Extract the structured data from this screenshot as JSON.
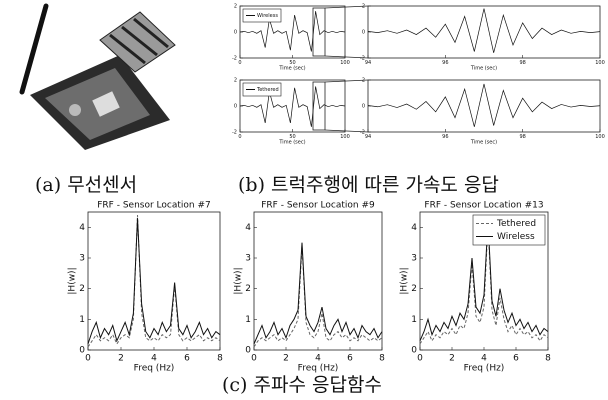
{
  "captions": {
    "a": "(a) 무선센서",
    "b": "(b) 트럭주행에 따른 가속도 응답",
    "c": "(c) 주파수 응답함수"
  },
  "chart_data": [
    {
      "type": "line",
      "xlabel": "Time (sec)",
      "xlim": [
        0,
        100
      ],
      "ylim": [
        -2,
        2
      ],
      "xticks": [
        0,
        50,
        100
      ],
      "yticks": [
        -2,
        0,
        2
      ],
      "legend": "upper left",
      "x": [
        0,
        4,
        8,
        12,
        16,
        20,
        24,
        28,
        32,
        36,
        40,
        44,
        48,
        52,
        56,
        60,
        64,
        68,
        72,
        76,
        80,
        84,
        88,
        92,
        96,
        100
      ],
      "series": [
        {
          "name": "Wireless",
          "color": "#111111",
          "values": [
            0,
            0.05,
            -0.05,
            0.05,
            -0.1,
            0.1,
            -1.2,
            1.0,
            -0.1,
            0.1,
            -0.1,
            0.05,
            -1.4,
            1.3,
            -0.1,
            0.1,
            -0.05,
            -1.5,
            1.6,
            -0.2,
            0.1,
            -0.05,
            0.05,
            -0.05,
            0.05,
            0
          ]
        }
      ]
    },
    {
      "type": "line",
      "xlabel": "Time (sec)",
      "xlim": [
        94,
        100
      ],
      "ylim": [
        -2,
        2
      ],
      "xticks": [
        94,
        96,
        98,
        100
      ],
      "yticks": [
        -2,
        0,
        2
      ],
      "x": [
        94,
        94.25,
        94.5,
        94.75,
        95,
        95.25,
        95.5,
        95.75,
        96,
        96.25,
        96.5,
        96.75,
        97,
        97.25,
        97.5,
        97.75,
        98,
        98.25,
        98.5,
        98.75,
        99,
        99.25,
        99.5,
        99.75,
        100
      ],
      "series": [
        {
          "name": null,
          "color": "#111111",
          "values": [
            0.05,
            -0.05,
            0.1,
            -0.1,
            0.15,
            -0.2,
            0.3,
            -0.4,
            0.6,
            -0.8,
            1.2,
            -1.5,
            1.8,
            -1.6,
            1.3,
            -1.0,
            0.7,
            -0.5,
            0.3,
            -0.2,
            0.15,
            -0.1,
            0.05,
            -0.05,
            0.03
          ]
        }
      ]
    },
    {
      "type": "line",
      "xlabel": "Time (sec)",
      "xlim": [
        0,
        100
      ],
      "ylim": [
        -2,
        2
      ],
      "xticks": [
        0,
        50,
        100
      ],
      "yticks": [
        -2,
        0,
        2
      ],
      "legend": "upper left",
      "x": [
        0,
        4,
        8,
        12,
        16,
        20,
        24,
        28,
        32,
        36,
        40,
        44,
        48,
        52,
        56,
        60,
        64,
        68,
        72,
        76,
        80,
        84,
        88,
        92,
        96,
        100
      ],
      "series": [
        {
          "name": "Tethered",
          "color": "#111111",
          "values": [
            0,
            0.05,
            -0.05,
            0.05,
            -0.1,
            0.1,
            -1.3,
            1.1,
            -0.1,
            0.1,
            -0.1,
            0.05,
            -1.3,
            1.4,
            -0.1,
            0.1,
            -0.05,
            -1.6,
            1.5,
            -0.2,
            0.1,
            -0.05,
            0.05,
            -0.05,
            0.05,
            0
          ]
        }
      ]
    },
    {
      "type": "line",
      "xlabel": "Time (sec)",
      "xlim": [
        94,
        100
      ],
      "ylim": [
        -2,
        2
      ],
      "xticks": [
        94,
        96,
        98,
        100
      ],
      "yticks": [
        -2,
        0,
        2
      ],
      "x": [
        94,
        94.25,
        94.5,
        94.75,
        95,
        95.25,
        95.5,
        95.75,
        96,
        96.25,
        96.5,
        96.75,
        97,
        97.25,
        97.5,
        97.75,
        98,
        98.25,
        98.5,
        98.75,
        99,
        99.25,
        99.5,
        99.75,
        100
      ],
      "series": [
        {
          "name": null,
          "color": "#111111",
          "values": [
            0.04,
            -0.06,
            0.1,
            -0.12,
            0.15,
            -0.25,
            0.35,
            -0.45,
            0.7,
            -0.9,
            1.3,
            -1.6,
            1.7,
            -1.5,
            1.2,
            -0.9,
            0.6,
            -0.45,
            0.3,
            -0.2,
            0.12,
            -0.08,
            0.05,
            -0.04,
            0.02
          ]
        }
      ]
    },
    {
      "type": "line",
      "title": "FRF - Sensor Location #7",
      "xlabel": "Freq (Hz)",
      "ylabel": "|H(w)|",
      "xlim": [
        0,
        8
      ],
      "ylim": [
        0,
        4.5
      ],
      "xticks": [
        0,
        2,
        4,
        6,
        8
      ],
      "yticks": [
        0,
        1,
        2,
        3,
        4
      ],
      "x": [
        0,
        0.25,
        0.5,
        0.75,
        1,
        1.25,
        1.5,
        1.75,
        2,
        2.25,
        2.5,
        2.75,
        3,
        3.25,
        3.5,
        3.75,
        4,
        4.25,
        4.5,
        4.75,
        5,
        5.25,
        5.5,
        5.75,
        6,
        6.25,
        6.5,
        6.75,
        7,
        7.25,
        7.5,
        7.75,
        8
      ],
      "series": [
        {
          "name": "Tethered",
          "color": "#666666",
          "dashed": true,
          "values": [
            0.1,
            0.3,
            0.5,
            0.3,
            0.4,
            0.3,
            0.5,
            0.2,
            0.4,
            0.5,
            0.4,
            1.0,
            4.4,
            1.2,
            0.4,
            0.3,
            0.4,
            0.3,
            0.5,
            0.4,
            0.5,
            2.1,
            0.5,
            0.3,
            0.4,
            0.3,
            0.4,
            0.5,
            0.3,
            0.4,
            0.3,
            0.4,
            0.3
          ]
        },
        {
          "name": "Wireless",
          "color": "#111111",
          "dashed": false,
          "values": [
            0.2,
            0.6,
            0.9,
            0.4,
            0.7,
            0.5,
            0.8,
            0.3,
            0.6,
            0.9,
            0.5,
            1.2,
            4.3,
            1.5,
            0.6,
            0.4,
            0.7,
            0.5,
            0.9,
            0.6,
            0.8,
            2.2,
            0.7,
            0.5,
            0.8,
            0.4,
            0.6,
            0.9,
            0.5,
            0.7,
            0.4,
            0.6,
            0.5
          ]
        }
      ]
    },
    {
      "type": "line",
      "title": "FRF - Sensor Location #9",
      "xlabel": "Freq (Hz)",
      "ylabel": "|H(w)|",
      "xlim": [
        0,
        8
      ],
      "ylim": [
        0,
        4.5
      ],
      "xticks": [
        0,
        2,
        4,
        6,
        8
      ],
      "yticks": [
        0,
        1,
        2,
        3,
        4
      ],
      "x": [
        0,
        0.25,
        0.5,
        0.75,
        1,
        1.25,
        1.5,
        1.75,
        2,
        2.25,
        2.5,
        2.75,
        3,
        3.25,
        3.5,
        3.75,
        4,
        4.25,
        4.5,
        4.75,
        5,
        5.25,
        5.5,
        5.75,
        6,
        6.25,
        6.5,
        6.75,
        7,
        7.25,
        7.5,
        7.75,
        8
      ],
      "series": [
        {
          "name": "Tethered",
          "color": "#666666",
          "dashed": true,
          "values": [
            0.1,
            0.3,
            0.4,
            0.3,
            0.4,
            0.5,
            0.3,
            0.4,
            0.3,
            0.5,
            0.7,
            1.0,
            3.4,
            0.9,
            0.5,
            0.4,
            0.6,
            1.2,
            0.4,
            0.3,
            0.5,
            0.6,
            0.4,
            0.5,
            0.3,
            0.4,
            0.3,
            0.5,
            0.4,
            0.3,
            0.4,
            0.3,
            0.4
          ]
        },
        {
          "name": "Wireless",
          "color": "#111111",
          "dashed": false,
          "values": [
            0.2,
            0.5,
            0.8,
            0.4,
            0.6,
            0.9,
            0.5,
            0.7,
            0.4,
            0.8,
            1.0,
            1.3,
            3.5,
            1.1,
            0.8,
            0.6,
            0.9,
            1.4,
            0.7,
            0.5,
            0.8,
            1.0,
            0.6,
            0.9,
            0.5,
            0.7,
            0.4,
            0.8,
            0.6,
            0.5,
            0.7,
            0.4,
            0.6
          ]
        }
      ]
    },
    {
      "type": "line",
      "title": "FRF - Sensor Location #13",
      "xlabel": "Freq (Hz)",
      "ylabel": "|H(w)|",
      "xlim": [
        0,
        8
      ],
      "ylim": [
        0,
        4.5
      ],
      "xticks": [
        0,
        2,
        4,
        6,
        8
      ],
      "yticks": [
        0,
        1,
        2,
        3,
        4
      ],
      "legend": "upper right",
      "x": [
        0,
        0.25,
        0.5,
        0.75,
        1,
        1.25,
        1.5,
        1.75,
        2,
        2.25,
        2.5,
        2.75,
        3,
        3.25,
        3.5,
        3.75,
        4,
        4.25,
        4.5,
        4.75,
        5,
        5.25,
        5.5,
        5.75,
        6,
        6.25,
        6.5,
        6.75,
        7,
        7.25,
        7.5,
        7.75,
        8
      ],
      "series": [
        {
          "name": "Tethered",
          "color": "#666666",
          "dashed": true,
          "values": [
            0.2,
            0.4,
            0.6,
            0.3,
            0.5,
            0.4,
            0.6,
            0.5,
            0.7,
            0.5,
            0.8,
            0.7,
            1.2,
            2.8,
            1.1,
            0.9,
            1.4,
            4.1,
            1.3,
            0.8,
            1.7,
            1.0,
            0.6,
            0.8,
            0.5,
            0.7,
            0.5,
            0.6,
            0.4,
            0.5,
            0.3,
            0.5,
            0.4
          ]
        },
        {
          "name": "Wireless",
          "color": "#111111",
          "dashed": false,
          "values": [
            0.3,
            0.6,
            1.0,
            0.5,
            0.8,
            0.6,
            0.9,
            0.7,
            1.1,
            0.8,
            1.2,
            1.0,
            1.5,
            3.0,
            1.4,
            1.2,
            1.8,
            4.2,
            1.6,
            1.1,
            2.0,
            1.3,
            0.9,
            1.2,
            0.8,
            1.0,
            0.7,
            0.9,
            0.6,
            0.8,
            0.5,
            0.7,
            0.6
          ]
        }
      ]
    }
  ]
}
